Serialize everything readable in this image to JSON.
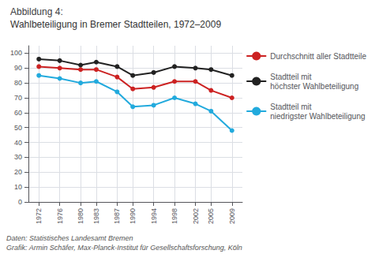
{
  "chart_data": {
    "type": "line",
    "title": "Abbildung 4:",
    "subtitle": "Wahlbeteiligung in Bremer Stadtteilen, 1972–2009",
    "x": [
      1972,
      1976,
      1980,
      1983,
      1987,
      1990,
      1994,
      1998,
      2002,
      2005,
      2009
    ],
    "series": [
      {
        "name": "Durchschnitt aller Stadtteile",
        "color": "#cc2222",
        "marker": "circle",
        "values": [
          91,
          90,
          89,
          89,
          84,
          76,
          77,
          81,
          81,
          75,
          70
        ]
      },
      {
        "name": "Stadtteil mit\nhöchster Wahlbeteiligung",
        "color": "#222222",
        "marker": "circle",
        "values": [
          96,
          95,
          92,
          94,
          91,
          85,
          87,
          91,
          90,
          89,
          85
        ]
      },
      {
        "name": "Stadtteil mit\nniedrigster Wahlbeteiligung",
        "color": "#22aadd",
        "marker": "circle",
        "values": [
          85,
          83,
          80,
          81,
          74,
          64,
          65,
          70,
          66,
          61,
          48
        ]
      }
    ],
    "xlim": [
      1970,
      2011
    ],
    "xticks": [
      1972,
      1976,
      1980,
      1983,
      1987,
      1990,
      1994,
      1998,
      2002,
      2005,
      2009
    ],
    "ylim": [
      0,
      105
    ],
    "yticks": [
      0,
      10,
      20,
      30,
      40,
      50,
      60,
      70,
      80,
      90,
      100
    ],
    "grid": true,
    "legend": "right",
    "annotations": [
      "Daten: Statistisches Landesamt Bremen",
      "Grafik: Armin Schäfer, Max-Planck-Institut für Gesellschaftsforschung, Köln"
    ]
  }
}
